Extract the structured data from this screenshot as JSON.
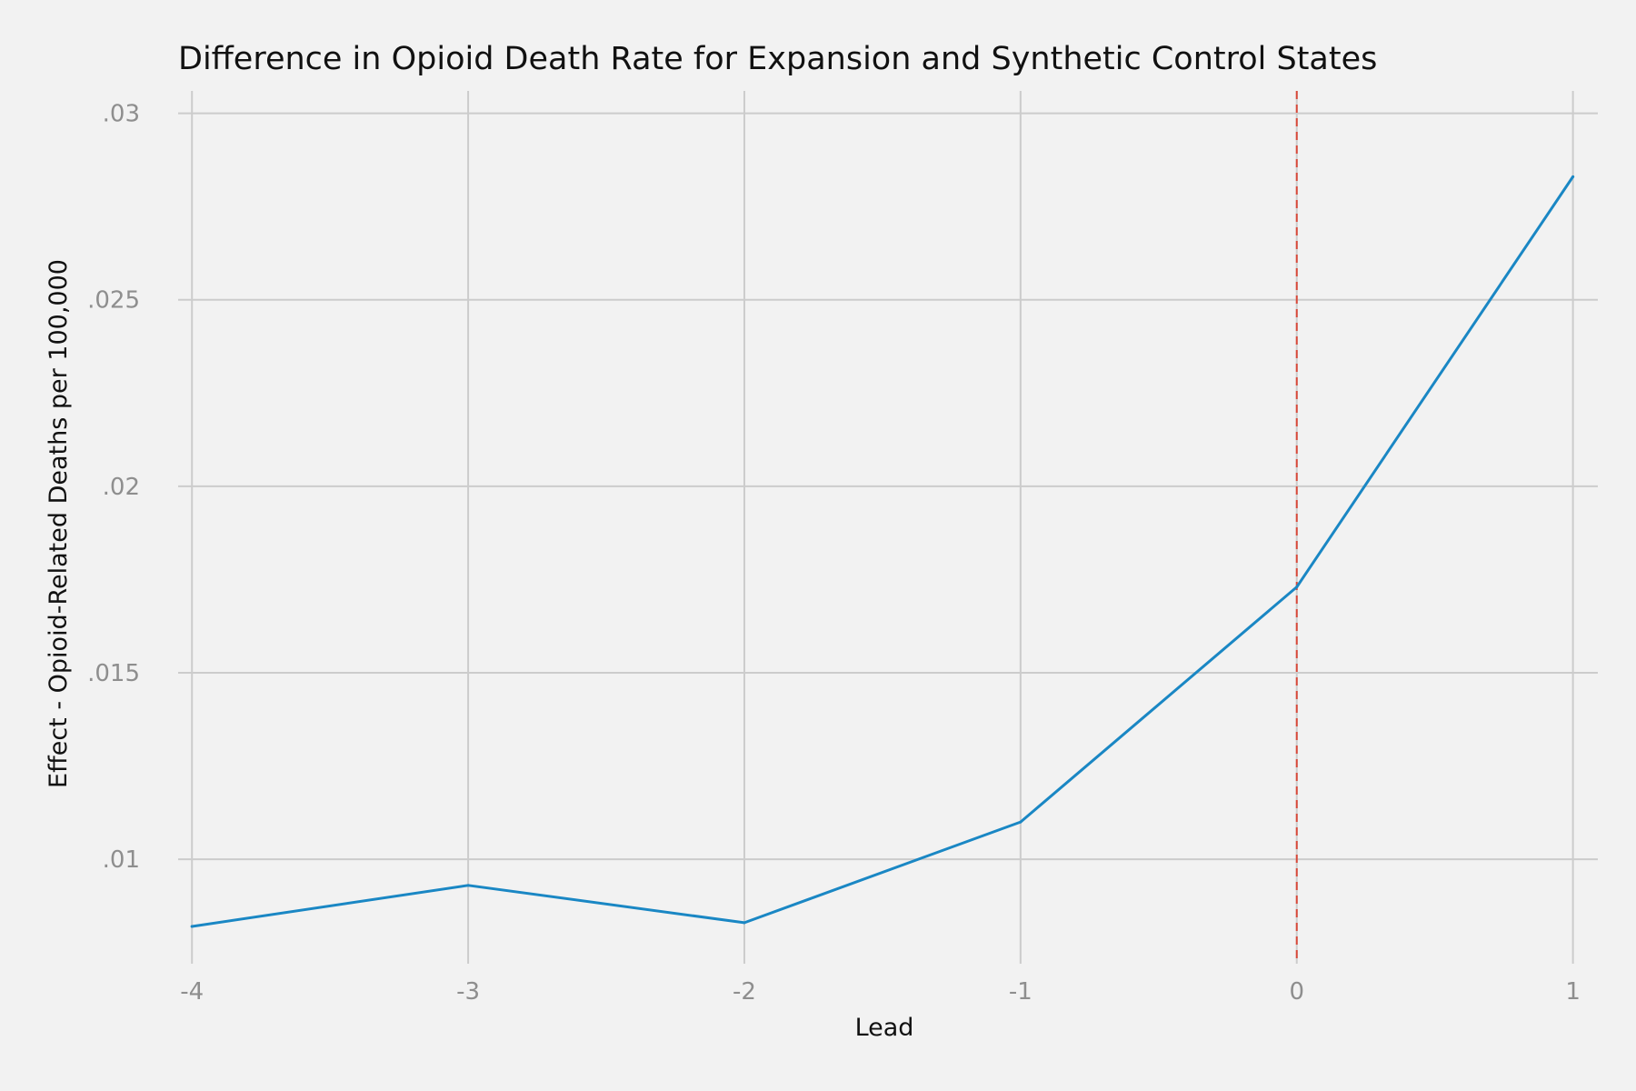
{
  "chart_data": {
    "type": "line",
    "title": "Difference in Opioid Death Rate for Expansion and Synthetic Control States",
    "xlabel": "Lead",
    "ylabel": "Effect - Opioid-Related Deaths per 100,000",
    "x": [
      -4,
      -3,
      -2,
      -1,
      0,
      1
    ],
    "series": [
      {
        "values": [
          0.0082,
          0.0093,
          0.0083,
          0.011,
          0.0173,
          0.0283
        ],
        "color": "#1a87c4"
      }
    ],
    "xticks": [
      -4,
      -3,
      -2,
      -1,
      0,
      1
    ],
    "xtick_labels": [
      "-4",
      "-3",
      "-2",
      "-1",
      "0",
      "1"
    ],
    "yticks": [
      0.01,
      0.015,
      0.02,
      0.025,
      0.03
    ],
    "ytick_labels": [
      ".01",
      ".015",
      ".02",
      ".025",
      ".03"
    ],
    "xlim": [
      -4.05,
      1.09
    ],
    "ylim": [
      0.0072,
      0.0306
    ],
    "grid": true,
    "reference_line": {
      "axis": "x",
      "value": 0,
      "style": "dashed",
      "color": "#d9493a"
    },
    "colors": {
      "background": "#f2f2f2",
      "grid": "#cccccc",
      "line": "#1a87c4",
      "reference": "#d9493a"
    }
  }
}
